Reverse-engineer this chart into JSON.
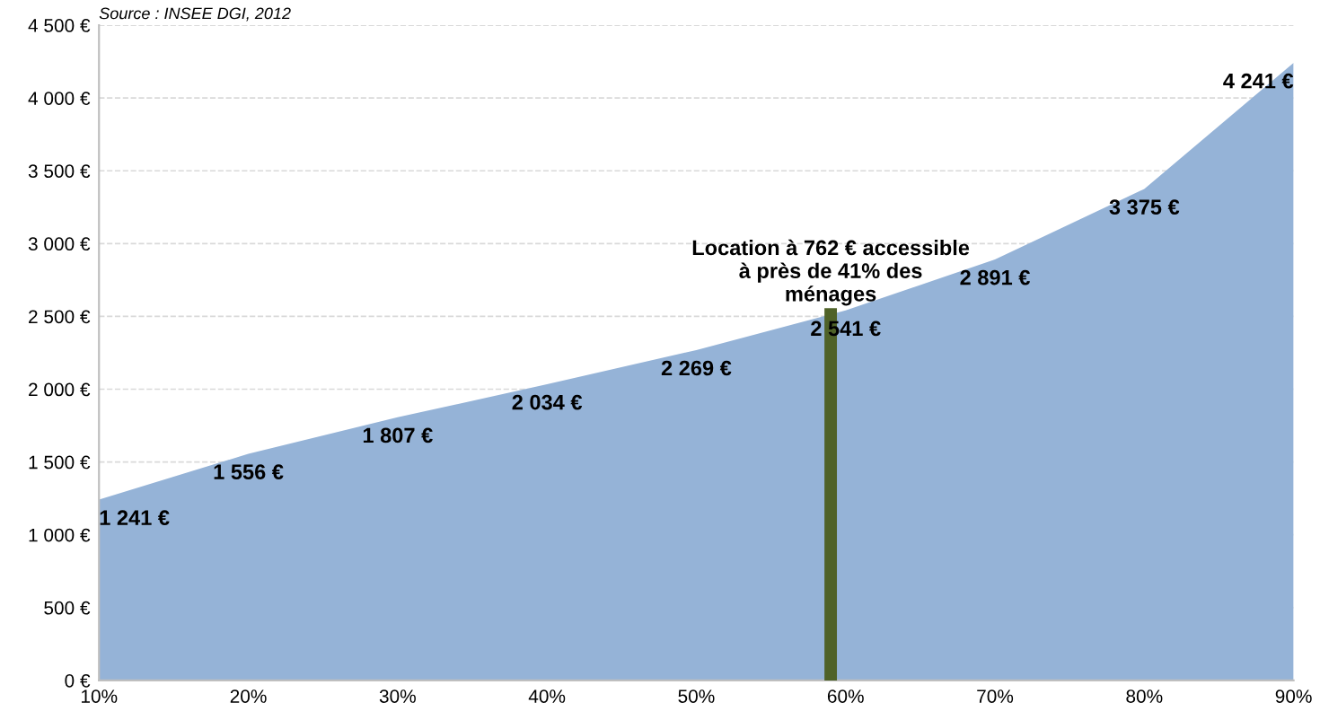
{
  "chart_data": {
    "type": "area",
    "x": [
      10,
      20,
      30,
      40,
      50,
      60,
      70,
      80,
      90
    ],
    "series": [
      {
        "color": "#95b3d7",
        "values": [
          1241,
          1556,
          1807,
          2034,
          2269,
          2541,
          2891,
          3375,
          4241
        ],
        "value_labels": [
          "1 241 €",
          "1 556 €",
          "1 807 €",
          "2 034 €",
          "2 269 €",
          "2 541 €",
          "2 891 €",
          "3 375 €",
          "4 241 €"
        ]
      }
    ],
    "xlim": [
      10,
      90
    ],
    "xticks": [
      {
        "value": 10,
        "label": "10%"
      },
      {
        "value": 20,
        "label": "20%"
      },
      {
        "value": 30,
        "label": "30%"
      },
      {
        "value": 40,
        "label": "40%"
      },
      {
        "value": 50,
        "label": "50%"
      },
      {
        "value": 60,
        "label": "60%"
      },
      {
        "value": 70,
        "label": "70%"
      },
      {
        "value": 80,
        "label": "80%"
      },
      {
        "value": 90,
        "label": "90%"
      }
    ],
    "ylim": [
      0,
      4500
    ],
    "yticks": [
      {
        "value": 0,
        "label": "0 €"
      },
      {
        "value": 500,
        "label": "500 €"
      },
      {
        "value": 1000,
        "label": "1 000 €"
      },
      {
        "value": 1500,
        "label": "1 500 €"
      },
      {
        "value": 2000,
        "label": "2 000 €"
      },
      {
        "value": 2500,
        "label": "2 500 €"
      },
      {
        "value": 3000,
        "label": "3 000 €"
      },
      {
        "value": 3500,
        "label": "3 500 €"
      },
      {
        "value": 4000,
        "label": "4 000 €"
      },
      {
        "value": 4500,
        "label": "4 500 €"
      }
    ],
    "grid": "y",
    "ref_lines": [
      {
        "axis": "x",
        "value": 59,
        "label": "Location à 762 € accessible\nà près de 41% des\nménages",
        "color": "#4f6228",
        "line_style": "solid"
      }
    ],
    "annotations": [
      "Source : INSEE DGI, 2012"
    ]
  }
}
